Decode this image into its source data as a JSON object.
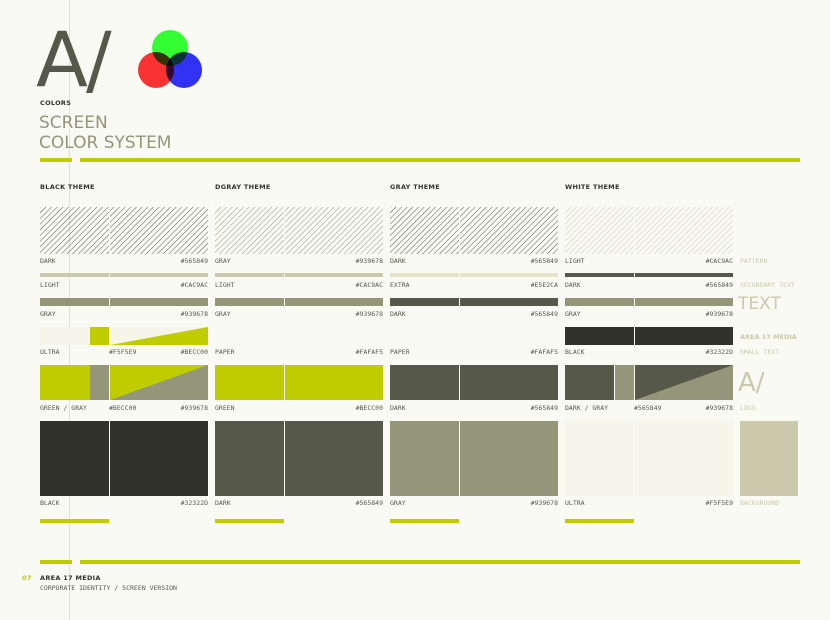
{
  "header": {
    "logo_text": "A/",
    "section_tag": "COLORS",
    "title_line1": "SCREEN",
    "title_line2": "COLOR SYSTEM"
  },
  "columns": [
    {
      "heading": "BLACK THEME"
    },
    {
      "heading": "DGRAY THEME"
    },
    {
      "heading": "GRAY THEME"
    },
    {
      "heading": "WHITE THEME"
    }
  ],
  "rows": {
    "r1": [
      {
        "name": "DARK",
        "hex": "#565849"
      },
      {
        "name": "GRAY",
        "hex": "#939678"
      },
      {
        "name": "DARK",
        "hex": "#565849"
      },
      {
        "name": "LIGHT",
        "hex": "#CAC9AC"
      }
    ],
    "r2": [
      {
        "name": "LIGHT",
        "hex": "#CAC9AC"
      },
      {
        "name": "LIGHT",
        "hex": "#CAC9AC"
      },
      {
        "name": "EXTRA",
        "hex": "#E5E2CA"
      },
      {
        "name": "DARK",
        "hex": "#565849"
      }
    ],
    "r3": [
      {
        "name": "GRAY",
        "hex": "#939678"
      },
      {
        "name": "GRAY",
        "hex": "#939678"
      },
      {
        "name": "DARK",
        "hex": "#565849"
      },
      {
        "name": "GRAY",
        "hex": "#939678"
      }
    ],
    "r4": [
      {
        "name": "ULTRA",
        "hex1": "#F5F5E9",
        "hex2": "#BECC00"
      },
      {
        "name": "PAPER",
        "hex": "#FAFAF5"
      },
      {
        "name": "PAPER",
        "hex": "#FAFAF5"
      },
      {
        "name": "BLACK",
        "hex": "#32322D"
      }
    ],
    "r5": [
      {
        "name": "GREEN / GRAY",
        "hex1": "#BECC00",
        "hex2": "#939678"
      },
      {
        "name": "GREEN",
        "hex": "#BECC00"
      },
      {
        "name": "DARK",
        "hex": "#565849"
      },
      {
        "name": "DARK / GRAY",
        "hex1": "#565849",
        "hex2": "#939678"
      }
    ],
    "r6": [
      {
        "name": "BLACK",
        "hex": "#32322D"
      },
      {
        "name": "DARK",
        "hex": "#565849"
      },
      {
        "name": "GRAY",
        "hex": "#939678"
      },
      {
        "name": "ULTRA",
        "hex": "#F5F5E9"
      }
    ]
  },
  "side": {
    "pattern": "PATTERN",
    "secondary_text": "SECONDARY TEXT",
    "text_sample": "TEXT",
    "area17_media": "AREA 17 MEDIA",
    "small_text": "SMALL TEXT",
    "logo_sample": "A/",
    "logo": "LOGO",
    "background": "BACKGROUND"
  },
  "footer": {
    "page_number": "07",
    "company": "AREA 17 MEDIA",
    "subtitle": "CORPORATE IDENTITY / SCREEN VERSION"
  },
  "colors": {
    "black": "#32322d",
    "dark": "#565849",
    "gray": "#939678",
    "light": "#cac9ac",
    "extra": "#e5e2ca",
    "ultra": "#f5f5e9",
    "paper": "#fafaf5",
    "green": "#becc00"
  }
}
